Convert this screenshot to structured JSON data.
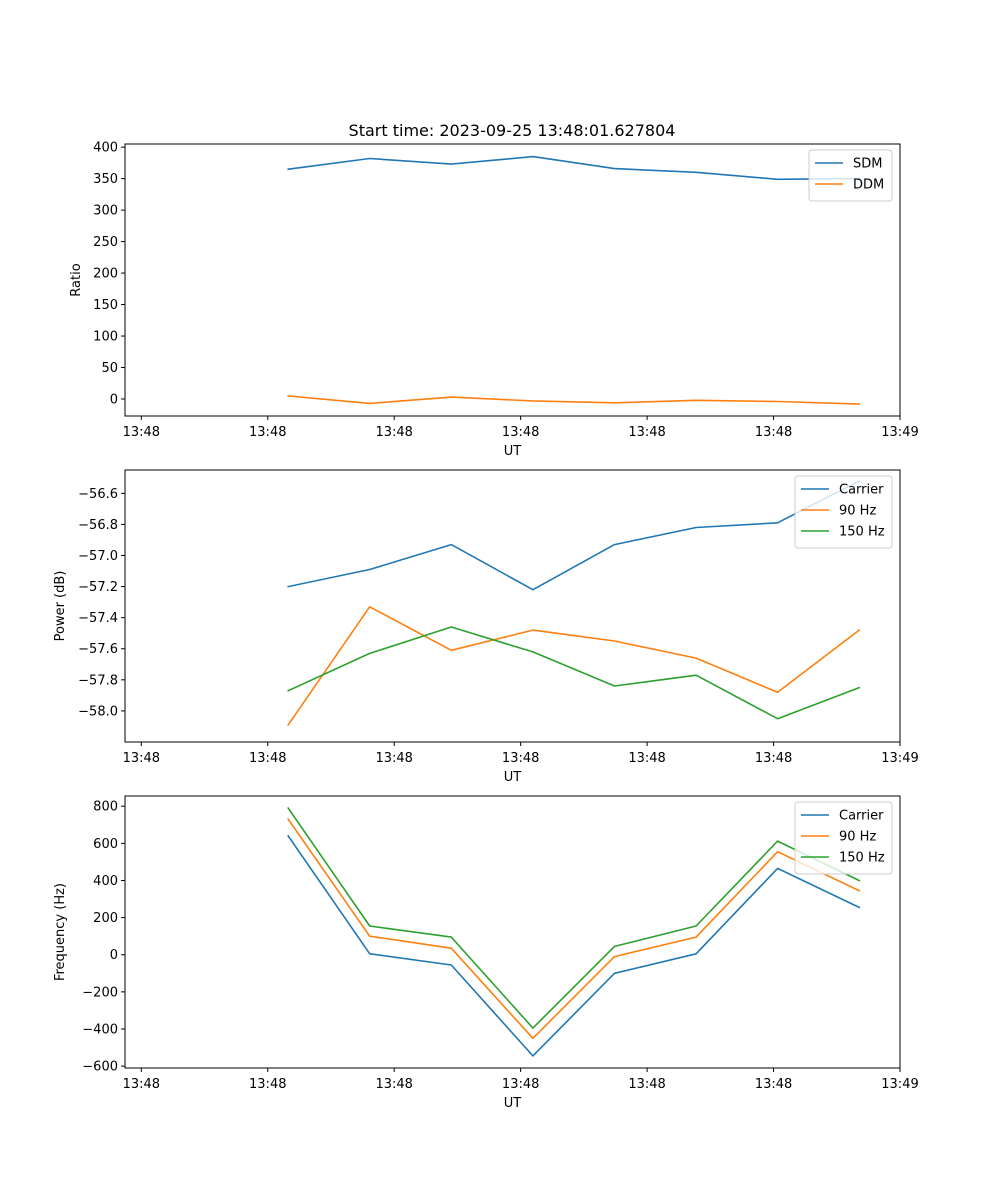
{
  "figure": {
    "title": "Start time: 2023-09-25 13:48:01.627804"
  },
  "chart_data": [
    {
      "type": "line",
      "title": "Start time: 2023-09-25 13:48:01.627804",
      "xlabel": "UT",
      "ylabel": "Ratio",
      "x": [
        1,
        2,
        3,
        4,
        5,
        6,
        7,
        8
      ],
      "xlim": [
        -1,
        8.5
      ],
      "xticks": [
        -0.8,
        0.75,
        2.3,
        3.85,
        5.4,
        6.95,
        8.5
      ],
      "xtick_labels": [
        "13:48",
        "13:48",
        "13:48",
        "13:48",
        "13:48",
        "13:48",
        "13:49"
      ],
      "ylim": [
        -27,
        405
      ],
      "yticks": [
        0,
        50,
        100,
        150,
        200,
        250,
        300,
        350,
        400
      ],
      "ytick_labels": [
        "0",
        "50",
        "100",
        "150",
        "200",
        "250",
        "300",
        "350",
        "400"
      ],
      "legend_position": "top-right",
      "series": [
        {
          "name": "SDM",
          "color": "#1f77b4",
          "values": [
            365,
            382,
            373,
            385,
            366,
            360,
            349,
            350
          ]
        },
        {
          "name": "DDM",
          "color": "#ff7f0e",
          "values": [
            5,
            -7,
            3,
            -3,
            -6,
            -2,
            -4,
            -8
          ]
        }
      ]
    },
    {
      "type": "line",
      "title": "",
      "xlabel": "UT",
      "ylabel": "Power (dB)",
      "x": [
        1,
        2,
        3,
        4,
        5,
        6,
        7,
        8
      ],
      "xlim": [
        -1,
        8.5
      ],
      "xticks": [
        -0.8,
        0.75,
        2.3,
        3.85,
        5.4,
        6.95,
        8.5
      ],
      "xtick_labels": [
        "13:48",
        "13:48",
        "13:48",
        "13:48",
        "13:48",
        "13:48",
        "13:49"
      ],
      "ylim": [
        -58.2,
        -56.45
      ],
      "yticks": [
        -58.0,
        -57.8,
        -57.6,
        -57.4,
        -57.2,
        -57.0,
        -56.8,
        -56.6
      ],
      "ytick_labels": [
        "−58.0",
        "−57.8",
        "−57.6",
        "−57.4",
        "−57.2",
        "−57.0",
        "−56.8",
        "−56.6"
      ],
      "legend_position": "top-right",
      "series": [
        {
          "name": "Carrier",
          "color": "#1f77b4",
          "values": [
            -57.2,
            -57.09,
            -56.93,
            -57.22,
            -56.93,
            -56.82,
            -56.79,
            -56.52
          ]
        },
        {
          "name": "90 Hz",
          "color": "#ff7f0e",
          "values": [
            -58.09,
            -57.33,
            -57.61,
            -57.48,
            -57.55,
            -57.66,
            -57.88,
            -57.48
          ]
        },
        {
          "name": "150 Hz",
          "color": "#2ca02c",
          "values": [
            -57.87,
            -57.63,
            -57.46,
            -57.62,
            -57.84,
            -57.77,
            -58.05,
            -57.85
          ]
        }
      ]
    },
    {
      "type": "line",
      "title": "",
      "xlabel": "UT",
      "ylabel": "Frequency (Hz)",
      "x": [
        1,
        2,
        3,
        4,
        5,
        6,
        7,
        8
      ],
      "xlim": [
        -1,
        8.5
      ],
      "xticks": [
        -0.8,
        0.75,
        2.3,
        3.85,
        5.4,
        6.95,
        8.5
      ],
      "xtick_labels": [
        "13:48",
        "13:48",
        "13:48",
        "13:48",
        "13:48",
        "13:48",
        "13:49"
      ],
      "ylim": [
        -610,
        855
      ],
      "yticks": [
        -600,
        -400,
        -200,
        0,
        200,
        400,
        600,
        800
      ],
      "ytick_labels": [
        "−600",
        "−400",
        "−200",
        "0",
        "200",
        "400",
        "600",
        "800"
      ],
      "legend_position": "top-right",
      "series": [
        {
          "name": "Carrier",
          "color": "#1f77b4",
          "values": [
            640,
            5,
            -55,
            -545,
            -100,
            5,
            465,
            255
          ]
        },
        {
          "name": "90 Hz",
          "color": "#ff7f0e",
          "values": [
            730,
            100,
            35,
            -450,
            -10,
            95,
            555,
            345
          ]
        },
        {
          "name": "150 Hz",
          "color": "#2ca02c",
          "values": [
            790,
            155,
            95,
            -395,
            45,
            155,
            612,
            400
          ]
        }
      ]
    }
  ]
}
